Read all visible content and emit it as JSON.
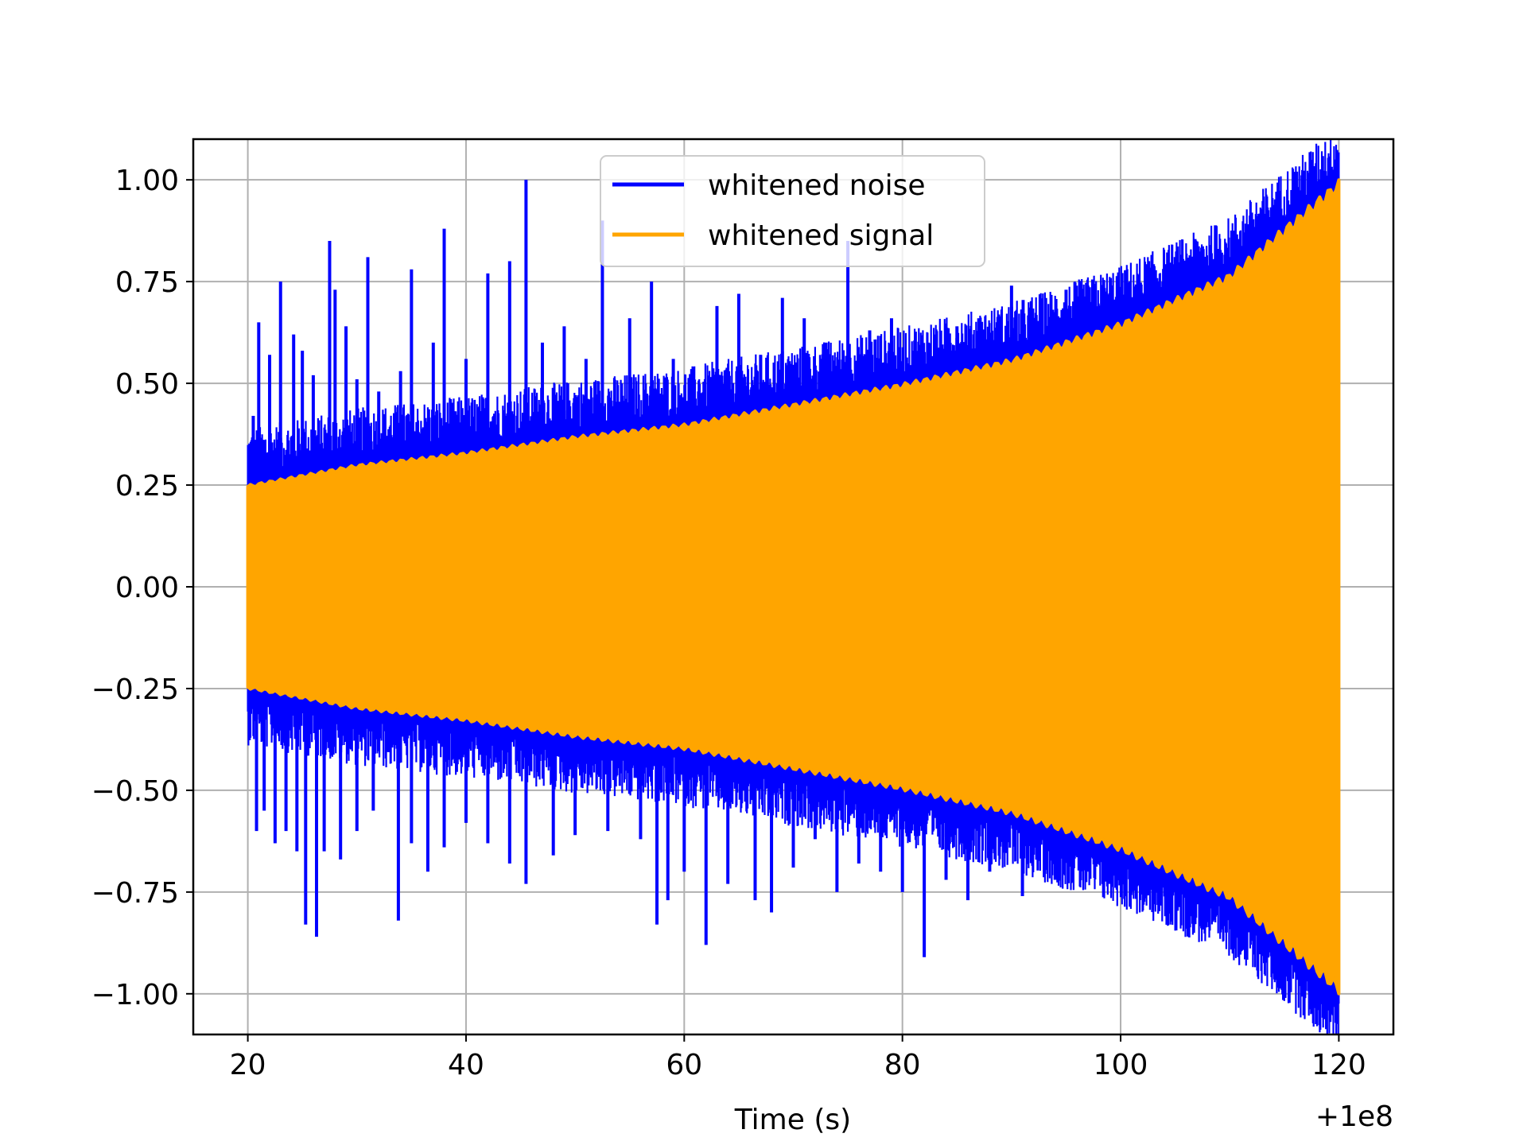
{
  "chart_data": {
    "type": "line",
    "title": "",
    "xlabel": "Time (s)",
    "ylabel": "",
    "x_offset_label": "+1e8",
    "xlim": [
      15,
      125
    ],
    "ylim": [
      -1.1,
      1.1
    ],
    "x_ticks": [
      20,
      40,
      60,
      80,
      100,
      120
    ],
    "x_tick_labels": [
      "20",
      "40",
      "60",
      "80",
      "100",
      "120"
    ],
    "y_ticks": [
      1.0,
      0.75,
      0.5,
      0.25,
      0.0,
      -0.25,
      -0.5,
      -0.75,
      -1.0
    ],
    "y_tick_labels": [
      "1.00",
      "0.75",
      "0.50",
      "0.25",
      "0.00",
      "−0.25",
      "−0.50",
      "−0.75",
      "−1.00"
    ],
    "grid": true,
    "legend_position": "top-center",
    "series": [
      {
        "name": "whitened noise",
        "color": "#0000ff",
        "x_range": [
          20,
          120
        ],
        "spike_tops": [
          [
            20.5,
            0.42
          ],
          [
            21.0,
            0.65
          ],
          [
            22.0,
            0.57
          ],
          [
            23.0,
            0.75
          ],
          [
            24.2,
            0.62
          ],
          [
            25.0,
            0.58
          ],
          [
            26.0,
            0.52
          ],
          [
            27.5,
            0.85
          ],
          [
            28.0,
            0.73
          ],
          [
            29.0,
            0.64
          ],
          [
            30.0,
            0.51
          ],
          [
            31.0,
            0.81
          ],
          [
            32.0,
            0.48
          ],
          [
            34.0,
            0.53
          ],
          [
            35.0,
            0.78
          ],
          [
            37.0,
            0.6
          ],
          [
            38.0,
            0.88
          ],
          [
            40.0,
            0.56
          ],
          [
            42.0,
            0.77
          ],
          [
            44.0,
            0.8
          ],
          [
            45.5,
            1.0
          ],
          [
            47.0,
            0.6
          ],
          [
            49.0,
            0.64
          ],
          [
            51.0,
            0.56
          ],
          [
            52.5,
            0.9
          ],
          [
            55.0,
            0.66
          ],
          [
            57.0,
            0.75
          ],
          [
            59.0,
            0.56
          ],
          [
            63.0,
            0.69
          ],
          [
            65.0,
            0.72
          ],
          [
            67.0,
            0.57
          ],
          [
            69.0,
            0.71
          ],
          [
            71.0,
            0.66
          ],
          [
            73.0,
            0.6
          ],
          [
            75.0,
            0.85
          ],
          [
            77.0,
            0.63
          ],
          [
            79.0,
            0.66
          ],
          [
            81.0,
            0.58
          ],
          [
            83.0,
            0.62
          ],
          [
            85.0,
            0.64
          ],
          [
            87.0,
            0.66
          ],
          [
            90.0,
            0.74
          ],
          [
            92.5,
            0.64
          ],
          [
            95.0,
            0.73
          ],
          [
            97.0,
            0.64
          ],
          [
            99.0,
            0.7
          ],
          [
            101.0,
            0.65
          ],
          [
            104.0,
            0.63
          ],
          [
            107.0,
            0.78
          ],
          [
            110.0,
            0.67
          ]
        ],
        "spike_bottoms": [
          [
            20.8,
            -0.6
          ],
          [
            21.5,
            -0.55
          ],
          [
            22.5,
            -0.63
          ],
          [
            23.5,
            -0.6
          ],
          [
            24.5,
            -0.65
          ],
          [
            25.3,
            -0.83
          ],
          [
            26.3,
            -0.86
          ],
          [
            27.0,
            -0.65
          ],
          [
            28.5,
            -0.67
          ],
          [
            30.0,
            -0.6
          ],
          [
            31.5,
            -0.55
          ],
          [
            33.8,
            -0.82
          ],
          [
            35.0,
            -0.63
          ],
          [
            36.5,
            -0.7
          ],
          [
            38.0,
            -0.64
          ],
          [
            40.0,
            -0.58
          ],
          [
            42.0,
            -0.63
          ],
          [
            44.0,
            -0.68
          ],
          [
            45.5,
            -0.73
          ],
          [
            48.0,
            -0.66
          ],
          [
            50.0,
            -0.61
          ],
          [
            53.0,
            -0.6
          ],
          [
            56.0,
            -0.62
          ],
          [
            57.5,
            -0.83
          ],
          [
            58.5,
            -0.77
          ],
          [
            60.0,
            -0.7
          ],
          [
            62.0,
            -0.88
          ],
          [
            64.0,
            -0.73
          ],
          [
            66.5,
            -0.77
          ],
          [
            68.0,
            -0.8
          ],
          [
            70.0,
            -0.69
          ],
          [
            72.0,
            -0.62
          ],
          [
            74.0,
            -0.75
          ],
          [
            76.0,
            -0.68
          ],
          [
            78.0,
            -0.7
          ],
          [
            80.0,
            -0.75
          ],
          [
            82.0,
            -0.91
          ],
          [
            84.0,
            -0.72
          ],
          [
            86.0,
            -0.77
          ],
          [
            88.0,
            -0.7
          ],
          [
            91.0,
            -0.76
          ],
          [
            94.0,
            -0.72
          ],
          [
            97.0,
            -0.7
          ],
          [
            99.0,
            -0.73
          ],
          [
            101.0,
            -0.68
          ],
          [
            103.0,
            -0.78
          ],
          [
            105.0,
            -0.75
          ],
          [
            107.0,
            -0.78
          ]
        ]
      },
      {
        "name": "whitened signal",
        "color": "#ffa500",
        "x_range": [
          20,
          120
        ],
        "envelope": [
          [
            20,
            0.25
          ],
          [
            30,
            0.3
          ],
          [
            40,
            0.33
          ],
          [
            50,
            0.37
          ],
          [
            60,
            0.4
          ],
          [
            70,
            0.45
          ],
          [
            80,
            0.5
          ],
          [
            90,
            0.56
          ],
          [
            100,
            0.65
          ],
          [
            110,
            0.77
          ],
          [
            120,
            1.0
          ]
        ]
      }
    ]
  }
}
